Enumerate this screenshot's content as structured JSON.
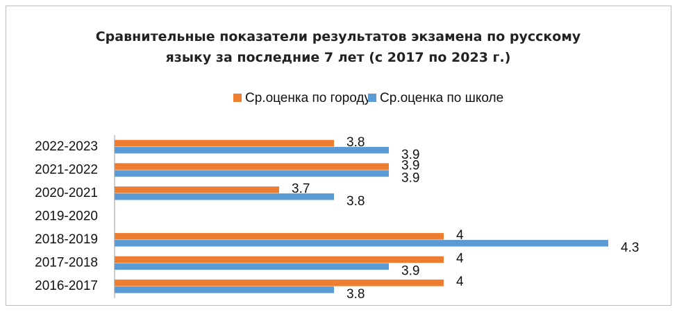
{
  "chart_data": {
    "type": "barh",
    "title": "Сравнительные показатели результатов экзамена по русскому языку за последние 7 лет (с 2017 по 2023 г.)",
    "categories": [
      "2016-2017",
      "2017-2018",
      "2018-2019",
      "2019-2020",
      "2020-2021",
      "2021-2022",
      "2022-2023"
    ],
    "series": [
      {
        "name": "Ср.оценка по городу",
        "color": "#ed7d31",
        "values": [
          4,
          4,
          4,
          null,
          3.7,
          3.9,
          3.8
        ]
      },
      {
        "name": "Ср.оценка по школе",
        "color": "#5b9bd5",
        "values": [
          3.8,
          3.9,
          4.3,
          null,
          3.8,
          3.9,
          3.9
        ]
      }
    ],
    "xlim": [
      3.4,
      4.4
    ],
    "legend": "top"
  }
}
